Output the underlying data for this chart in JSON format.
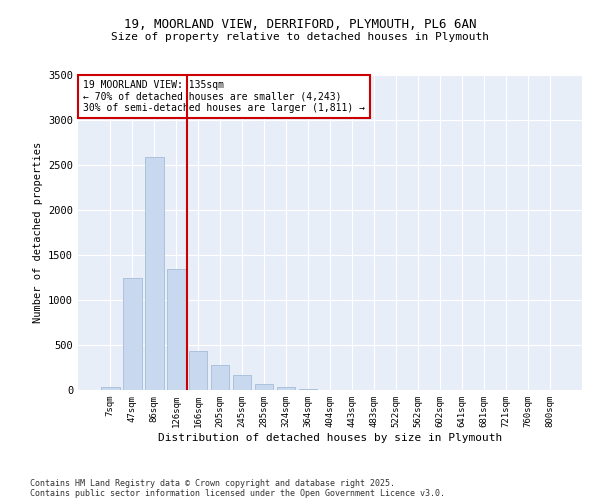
{
  "title_line1": "19, MOORLAND VIEW, DERRIFORD, PLYMOUTH, PL6 6AN",
  "title_line2": "Size of property relative to detached houses in Plymouth",
  "xlabel": "Distribution of detached houses by size in Plymouth",
  "ylabel": "Number of detached properties",
  "bar_color": "#c8d9ef",
  "bar_edge_color": "#9ab4d4",
  "vline_color": "#cc0000",
  "vline_x_index": 3,
  "categories": [
    "7sqm",
    "47sqm",
    "86sqm",
    "126sqm",
    "166sqm",
    "205sqm",
    "245sqm",
    "285sqm",
    "324sqm",
    "364sqm",
    "404sqm",
    "443sqm",
    "483sqm",
    "522sqm",
    "562sqm",
    "602sqm",
    "641sqm",
    "681sqm",
    "721sqm",
    "760sqm",
    "800sqm"
  ],
  "values": [
    30,
    1240,
    2590,
    1350,
    430,
    280,
    170,
    70,
    30,
    10,
    5,
    0,
    0,
    0,
    0,
    0,
    0,
    0,
    0,
    0,
    0
  ],
  "ylim": [
    0,
    3500
  ],
  "yticks": [
    0,
    500,
    1000,
    1500,
    2000,
    2500,
    3000,
    3500
  ],
  "annotation_line1": "19 MOORLAND VIEW: 135sqm",
  "annotation_line2": "← 70% of detached houses are smaller (4,243)",
  "annotation_line3": "30% of semi-detached houses are larger (1,811) →",
  "bg_color": "#e8eef8",
  "footnote1": "Contains HM Land Registry data © Crown copyright and database right 2025.",
  "footnote2": "Contains public sector information licensed under the Open Government Licence v3.0."
}
